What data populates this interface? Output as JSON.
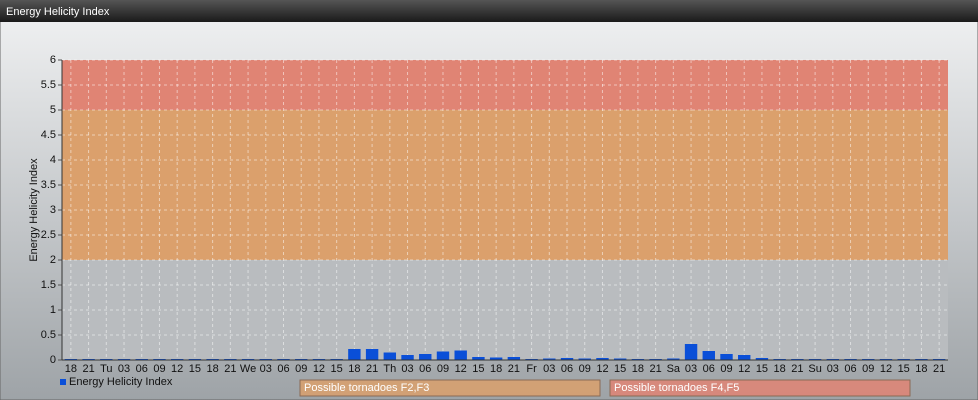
{
  "window_title": "Energy Helicity Index",
  "chart_data": {
    "type": "bar",
    "y_label": "Energy Helicity Index",
    "categories": [
      "18",
      "21",
      "Tu",
      "03",
      "06",
      "09",
      "12",
      "15",
      "18",
      "21",
      "We",
      "03",
      "06",
      "09",
      "12",
      "15",
      "18",
      "21",
      "Th",
      "03",
      "06",
      "09",
      "12",
      "15",
      "18",
      "21",
      "Fr",
      "03",
      "06",
      "09",
      "12",
      "15",
      "18",
      "21",
      "Sa",
      "03",
      "06",
      "09",
      "12",
      "15",
      "18",
      "21",
      "Su",
      "03",
      "06",
      "09",
      "12",
      "15",
      "18",
      "21"
    ],
    "series": [
      {
        "name": "Energy Helicity Index",
        "color": "#0a4fd8",
        "values": [
          0.02,
          0.02,
          0.02,
          0.02,
          0.02,
          0.02,
          0.02,
          0.02,
          0.02,
          0.02,
          0.02,
          0.02,
          0.02,
          0.02,
          0.02,
          0.02,
          0.22,
          0.22,
          0.15,
          0.1,
          0.12,
          0.17,
          0.19,
          0.06,
          0.05,
          0.06,
          0.02,
          0.03,
          0.04,
          0.03,
          0.04,
          0.03,
          0.02,
          0.02,
          0.03,
          0.32,
          0.18,
          0.12,
          0.1,
          0.04,
          0.02,
          0.02,
          0.02,
          0.02,
          0.02,
          0.02,
          0.02,
          0.02,
          0.02,
          0.02
        ]
      }
    ],
    "ylim": [
      0,
      6
    ],
    "yticks": [
      0,
      0.5,
      1,
      1.5,
      2,
      2.5,
      3,
      3.5,
      4,
      4.5,
      5,
      5.5,
      6
    ],
    "grid": true,
    "bands": [
      {
        "from": 0,
        "to": 2,
        "color": "#b9bcbf"
      },
      {
        "name": "Possible tornadoes F2,F3",
        "from": 2,
        "to": 5,
        "color": "#dba06c"
      },
      {
        "name": "Possible tornadoes F4,F5",
        "from": 5,
        "to": 6,
        "color": "#e08474"
      }
    ]
  }
}
